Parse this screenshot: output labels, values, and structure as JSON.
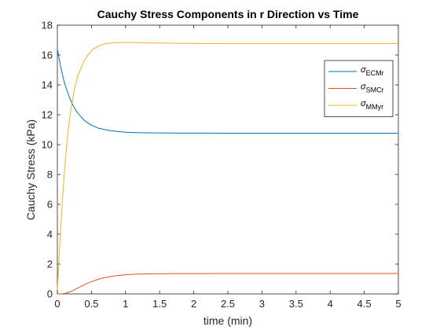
{
  "chart_data": {
    "type": "line",
    "title": "Cauchy Stress Components in r Direction vs Time",
    "xlabel": "time (min)",
    "ylabel": "Cauchy Stress (kPa)",
    "xlim": [
      0,
      5
    ],
    "ylim": [
      0,
      18
    ],
    "x_ticks": [
      "0",
      "0.5",
      "1",
      "1.5",
      "2",
      "2.5",
      "3",
      "3.5",
      "4",
      "4.5",
      "5"
    ],
    "y_ticks": [
      "0",
      "2",
      "4",
      "6",
      "8",
      "10",
      "12",
      "14",
      "16",
      "18"
    ],
    "grid": false,
    "legend_position": "top-right",
    "x": [
      0,
      0.05,
      0.1,
      0.15,
      0.2,
      0.25,
      0.3,
      0.4,
      0.5,
      0.6,
      0.7,
      0.8,
      0.9,
      1.0,
      1.1,
      1.2,
      1.3,
      1.5,
      1.75,
      2.0,
      2.5,
      3.0,
      3.5,
      4.0,
      4.5,
      5.0
    ],
    "series": [
      {
        "name_prefix": "σ",
        "name_sub": "ECMr",
        "color": "#0072BD",
        "values": [
          16.4,
          15.2,
          14.2,
          13.5,
          12.9,
          12.45,
          12.1,
          11.6,
          11.3,
          11.1,
          11.0,
          10.92,
          10.87,
          10.83,
          10.81,
          10.8,
          10.79,
          10.78,
          10.77,
          10.77,
          10.76,
          10.76,
          10.76,
          10.76,
          10.76,
          10.76
        ]
      },
      {
        "name_prefix": "σ",
        "name_sub": "SMCr",
        "color": "#D95319",
        "values": [
          0,
          0,
          0.02,
          0.08,
          0.17,
          0.28,
          0.4,
          0.62,
          0.82,
          0.98,
          1.1,
          1.18,
          1.24,
          1.28,
          1.31,
          1.33,
          1.34,
          1.35,
          1.36,
          1.36,
          1.37,
          1.37,
          1.37,
          1.37,
          1.37,
          1.37
        ]
      },
      {
        "name_prefix": "σ",
        "name_sub": "MMyr",
        "color": "#EDB120",
        "values": [
          0.3,
          4.5,
          8.0,
          10.6,
          12.4,
          13.7,
          14.6,
          15.7,
          16.3,
          16.6,
          16.75,
          16.8,
          16.83,
          16.84,
          16.84,
          16.83,
          16.82,
          16.8,
          16.78,
          16.77,
          16.76,
          16.76,
          16.76,
          16.76,
          16.76,
          16.76
        ]
      }
    ]
  }
}
